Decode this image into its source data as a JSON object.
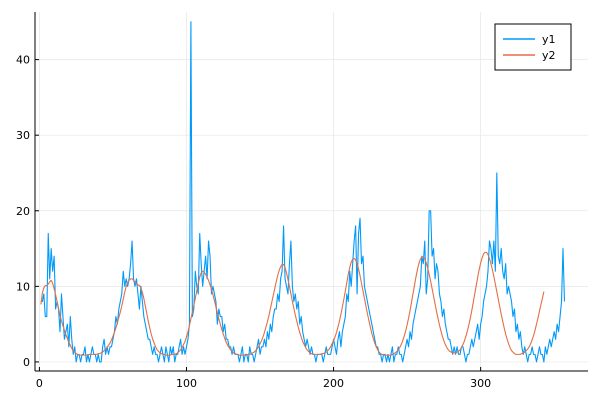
{
  "chart_data": {
    "type": "line",
    "title": "",
    "xlabel": "",
    "ylabel": "",
    "xlim": [
      -3,
      373
    ],
    "ylim": [
      -1.2,
      46.3
    ],
    "xticks": [
      0,
      100,
      200,
      300
    ],
    "xtick_labels": [
      "0",
      "100",
      "200",
      "300"
    ],
    "yticks": [
      0,
      10,
      20,
      30,
      40
    ],
    "ytick_labels": [
      "0",
      "10",
      "20",
      "30",
      "40"
    ],
    "grid": true,
    "legend": {
      "position": "top-right",
      "entries": [
        "y1",
        "y2"
      ]
    },
    "series": [
      {
        "name": "y1",
        "color": "#009AFA",
        "values": [
          8,
          8,
          9,
          6,
          6,
          17,
          11,
          15,
          12,
          14,
          7,
          8,
          7,
          4,
          9,
          6,
          3,
          4,
          5,
          2,
          6,
          3,
          1,
          2,
          0,
          1,
          1,
          0,
          1,
          1,
          2,
          0,
          1,
          0,
          1,
          2,
          1,
          1,
          0,
          1,
          0,
          0,
          2,
          3,
          1,
          2,
          1,
          2,
          2,
          3,
          4,
          6,
          5,
          7,
          8,
          9,
          12,
          10,
          11,
          10,
          11,
          13,
          16,
          11,
          10,
          11,
          9,
          7,
          10,
          8,
          6,
          5,
          4,
          3,
          3,
          2,
          1,
          2,
          1,
          1,
          0,
          1,
          2,
          1,
          0,
          2,
          1,
          0,
          2,
          1,
          2,
          0,
          1,
          1,
          2,
          3,
          1,
          2,
          1,
          2,
          3,
          5,
          45,
          6,
          7,
          12,
          10,
          9,
          17,
          13,
          10,
          12,
          14,
          11,
          16,
          14,
          9,
          10,
          9,
          8,
          5,
          7,
          6,
          6,
          4,
          5,
          3,
          3,
          2,
          2,
          1,
          2,
          1,
          1,
          1,
          0,
          1,
          2,
          0,
          1,
          1,
          0,
          2,
          1,
          1,
          0,
          1,
          2,
          3,
          1,
          2,
          2,
          3,
          2,
          4,
          3,
          5,
          4,
          6,
          7,
          7,
          9,
          8,
          11,
          12,
          18,
          11,
          10,
          9,
          13,
          16,
          10,
          8,
          9,
          7,
          8,
          5,
          6,
          4,
          3,
          2,
          3,
          2,
          1,
          2,
          1,
          1,
          0,
          1,
          1,
          1,
          1,
          0,
          1,
          2,
          1,
          1,
          1,
          2,
          3,
          2,
          1,
          3,
          4,
          2,
          4,
          5,
          6,
          9,
          8,
          12,
          10,
          13,
          16,
          18,
          9,
          17,
          19,
          13,
          14,
          10,
          9,
          8,
          7,
          6,
          5,
          4,
          3,
          2,
          2,
          1,
          1,
          0,
          1,
          1,
          0,
          1,
          0,
          1,
          2,
          0,
          1,
          1,
          2,
          1,
          1,
          0,
          1,
          2,
          3,
          2,
          4,
          3,
          5,
          6,
          7,
          8,
          9,
          10,
          14,
          13,
          16,
          9,
          11,
          20,
          20,
          14,
          15,
          11,
          13,
          12,
          9,
          8,
          6,
          7,
          5,
          4,
          3,
          3,
          2,
          1,
          2,
          1,
          2,
          1,
          1,
          2,
          2,
          1,
          0,
          1,
          1,
          2,
          3,
          2,
          3,
          4,
          5,
          3,
          5,
          6,
          8,
          9,
          10,
          12,
          16,
          15,
          13,
          16,
          12,
          25,
          14,
          13,
          15,
          12,
          11,
          13,
          9,
          10,
          9,
          8,
          6,
          7,
          4,
          5,
          3,
          4,
          2,
          1,
          2,
          1,
          0,
          1,
          1,
          2,
          1,
          1,
          0,
          1,
          2,
          1,
          1,
          0,
          2,
          1,
          2,
          3,
          2,
          3,
          4,
          3,
          5,
          4,
          6,
          8,
          15,
          8
        ]
      },
      {
        "name": "y2",
        "color": "#E26F46",
        "values": [
          7.6,
          9.1,
          9.8,
          10.1,
          10.1,
          10.3,
          10.6,
          10.8,
          10.4,
          9.7,
          8.9,
          8.0,
          7.1,
          6.2,
          5.4,
          4.8,
          4.2,
          3.6,
          3.1,
          2.6,
          2.2,
          1.8,
          1.5,
          1.3,
          1.1,
          1.0,
          0.9,
          0.9,
          0.9,
          0.9,
          0.9,
          0.9,
          0.9,
          1.0,
          1.0,
          1.0,
          1.0,
          1.0,
          1.0,
          1.1,
          1.1,
          1.2,
          1.3,
          1.5,
          1.7,
          1.9,
          2.2,
          2.5,
          2.9,
          3.4,
          3.9,
          4.5,
          5.2,
          5.9,
          6.6,
          7.4,
          8.3,
          9.2,
          10.0,
          10.5,
          10.8,
          11.0,
          11.0,
          10.8,
          10.6,
          10.3,
          10.2,
          10.1,
          9.8,
          9.2,
          8.4,
          7.4,
          6.4,
          5.4,
          4.5,
          3.7,
          3.0,
          2.5,
          2.0,
          1.6,
          1.4,
          1.2,
          1.1,
          1.0,
          1.0,
          0.9,
          0.9,
          0.9,
          0.9,
          1.0,
          1.0,
          1.0,
          1.1,
          1.2,
          1.4,
          1.6,
          1.9,
          2.3,
          2.7,
          3.3,
          4.0,
          4.8,
          5.7,
          6.6,
          7.5,
          8.4,
          9.4,
          10.4,
          11.2,
          11.8,
          12.0,
          11.9,
          11.6,
          11.2,
          10.8,
          10.2,
          9.6,
          8.9,
          8.1,
          7.3,
          6.5,
          5.7,
          5.0,
          4.3,
          3.7,
          3.1,
          2.6,
          2.2,
          1.9,
          1.6,
          1.4,
          1.2,
          1.1,
          1.0,
          1.0,
          0.9,
          0.9,
          0.9,
          0.9,
          0.9,
          0.9,
          1.0,
          1.0,
          1.1,
          1.2,
          1.3,
          1.5,
          1.7,
          2.0,
          2.4,
          2.8,
          3.3,
          3.9,
          4.6,
          5.3,
          6.1,
          7.0,
          7.9,
          8.8,
          9.7,
          10.6,
          11.4,
          12.1,
          12.6,
          12.9,
          12.9,
          12.5,
          11.8,
          10.9,
          10.0,
          9.0,
          8.0,
          7.1,
          6.2,
          5.4,
          4.6,
          3.9,
          3.3,
          2.7,
          2.3,
          1.9,
          1.6,
          1.4,
          1.2,
          1.1,
          1.0,
          1.0,
          1.0,
          1.0,
          1.0,
          1.0,
          1.1,
          1.1,
          1.2,
          1.3,
          1.5,
          1.7,
          2.0,
          2.4,
          2.8,
          3.3,
          3.9,
          4.6,
          5.4,
          6.3,
          7.3,
          8.3,
          9.4,
          10.5,
          11.6,
          12.5,
          13.2,
          13.6,
          13.7,
          13.5,
          13.0,
          12.3,
          11.4,
          10.4,
          9.4,
          8.4,
          7.4,
          6.4,
          5.5,
          4.6,
          3.8,
          3.1,
          2.5,
          2.0,
          1.6,
          1.3,
          1.1,
          1.0,
          0.9,
          0.9,
          0.9,
          0.9,
          0.9,
          0.9,
          1.0,
          1.1,
          1.2,
          1.4,
          1.6,
          1.9,
          2.3,
          2.8,
          3.4,
          4.1,
          4.9,
          5.8,
          6.8,
          7.9,
          9.0,
          10.1,
          11.2,
          12.2,
          13.0,
          13.6,
          13.9,
          13.9,
          13.6,
          13.1,
          12.4,
          11.6,
          10.7,
          9.7,
          8.7,
          7.7,
          6.7,
          5.8,
          4.9,
          4.1,
          3.4,
          2.8,
          2.3,
          1.9,
          1.6,
          1.4,
          1.3,
          1.2,
          1.2,
          1.2,
          1.3,
          1.4,
          1.6,
          1.9,
          2.3,
          2.8,
          3.4,
          4.1,
          4.9,
          5.8,
          6.8,
          7.9,
          9.0,
          10.1,
          11.2,
          12.2,
          13.1,
          13.8,
          14.3,
          14.5,
          14.5,
          14.2,
          13.7,
          13.0,
          12.2,
          11.3,
          10.3,
          9.3,
          8.3,
          7.3,
          6.3,
          5.4,
          4.5,
          3.7,
          3.0,
          2.4,
          1.9,
          1.5,
          1.3,
          1.1,
          1.0,
          1.0,
          1.0,
          1.0,
          1.1,
          1.2,
          1.3,
          1.5,
          1.7,
          2.0,
          2.4,
          2.9,
          3.5,
          4.2,
          5.0,
          5.8,
          6.7,
          7.6,
          8.4,
          9.3
        ]
      }
    ]
  }
}
